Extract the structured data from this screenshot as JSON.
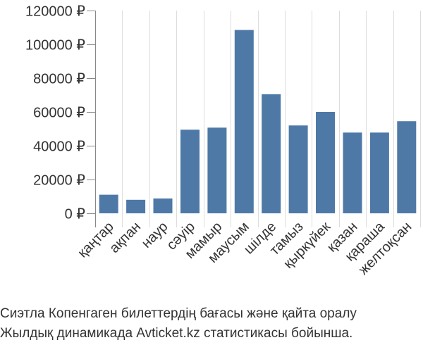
{
  "chart_data": {
    "type": "bar",
    "categories": [
      "қаңтар",
      "ақпан",
      "наур",
      "сәуір",
      "мамыр",
      "маусым",
      "шілде",
      "тамыз",
      "қыркүйек",
      "қазан",
      "қараша",
      "желтоқсан"
    ],
    "values": [
      11000,
      8000,
      8800,
      49500,
      50700,
      108500,
      70500,
      52000,
      60000,
      47800,
      47800,
      54500
    ],
    "yticks": [
      "0 ₽",
      "20000 ₽",
      "40000 ₽",
      "60000 ₽",
      "80000 ₽",
      "100000 ₽",
      "120000 ₽"
    ],
    "ytick_values": [
      0,
      20000,
      40000,
      60000,
      80000,
      100000,
      120000
    ],
    "ylim": [
      0,
      120000
    ],
    "grid": "vertical",
    "bar_color": "#4e79a7",
    "grid_color": "#dddddd",
    "axis_color": "#888888"
  },
  "caption": {
    "line1": "Сиэтла Копенгаген билеттердің бағасы және қайта оралу",
    "line2": "Жылдық динамикада Avticket.kz статистикасы бойынша."
  }
}
